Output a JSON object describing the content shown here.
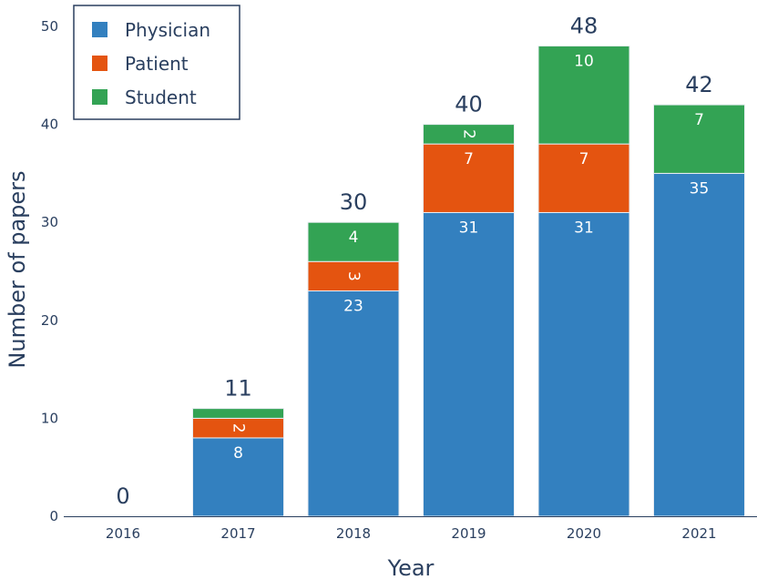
{
  "chart_data": {
    "type": "bar",
    "stacked": true,
    "categories": [
      "2016",
      "2017",
      "2018",
      "2019",
      "2020",
      "2021"
    ],
    "series": [
      {
        "name": "Physician",
        "color": "#3380bf",
        "values": [
          0,
          8,
          23,
          31,
          31,
          35
        ],
        "labels": [
          "",
          "8",
          "23",
          "31",
          "31",
          "35"
        ]
      },
      {
        "name": "Patient",
        "color": "#e45410",
        "values": [
          0,
          2,
          3,
          7,
          7,
          0
        ],
        "labels": [
          "",
          "2",
          "3",
          "7",
          "7",
          ""
        ],
        "rotated_labels": [
          false,
          true,
          true,
          false,
          false,
          false
        ]
      },
      {
        "name": "Student",
        "color": "#33a354",
        "values": [
          0,
          1,
          4,
          2,
          10,
          7
        ],
        "labels": [
          "",
          "",
          "4",
          "2",
          "10",
          "7"
        ],
        "rotated_labels": [
          false,
          false,
          false,
          true,
          false,
          false
        ]
      }
    ],
    "totals": [
      "0",
      "11",
      "30",
      "40",
      "48",
      "42"
    ],
    "xlabel": "Year",
    "ylabel": "Number of papers",
    "ylim": [
      0,
      50
    ],
    "yticks": [
      "0",
      "10",
      "20",
      "30",
      "40",
      "50"
    ],
    "legend_position": "top-left"
  }
}
